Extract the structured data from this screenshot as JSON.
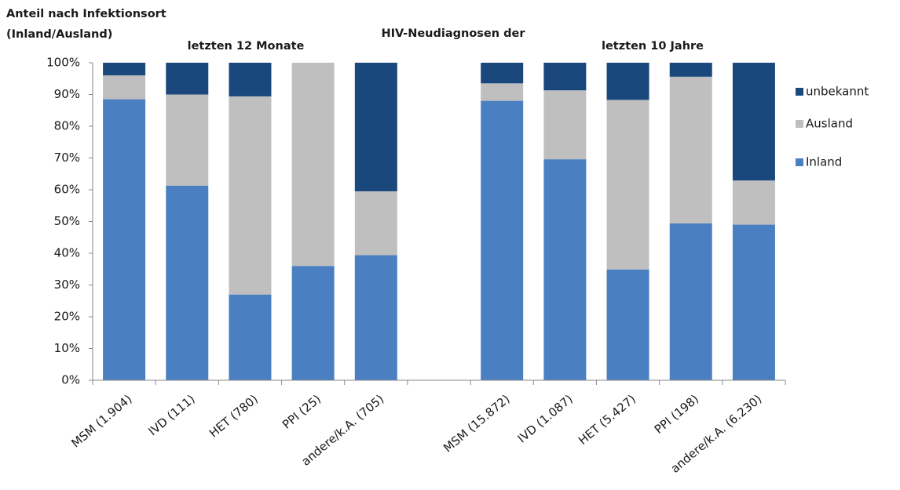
{
  "chart_data": {
    "type": "stacked_bar",
    "ylabel": [
      "Anteil nach Infektionsort",
      "(Inland/Ausland)"
    ],
    "annotations": [
      "letzten 12 Monate",
      "HIV-Neudiagnosen der",
      "letzten 10 Jahre"
    ],
    "categories": [
      "MSM (1.904)",
      "IVD (111)",
      "HET (780)",
      "PPI (25)",
      "andere/k.A. (705)",
      null,
      "MSM (15.872)",
      "IVD (1.087)",
      "HET (5.427)",
      "PPI (198)",
      "andere/k.A. (6.230)"
    ],
    "series": [
      {
        "name": "Inland",
        "color": "#4a80c2",
        "values": [
          88.5,
          61.3,
          27,
          36,
          39.4,
          null,
          88,
          69.6,
          34.9,
          49.4,
          49
        ]
      },
      {
        "name": "Ausland",
        "color": "#bfbfbf",
        "values": [
          7.5,
          28.7,
          62.4,
          64,
          20.1,
          null,
          5.5,
          21.7,
          53.4,
          46.2,
          13.9
        ]
      },
      {
        "name": "unbekannt",
        "color": "#1a477c",
        "values": [
          4,
          10,
          10.6,
          0,
          40.5,
          null,
          6.5,
          8.7,
          11.7,
          4.4,
          37.1
        ]
      }
    ],
    "ylim": [
      0,
      100
    ],
    "yticks": [
      {
        "value": 0,
        "label": "0%"
      },
      {
        "value": 10,
        "label": "10%"
      },
      {
        "value": 20,
        "label": "20%"
      },
      {
        "value": 30,
        "label": "30%"
      },
      {
        "value": 40,
        "label": "40%"
      },
      {
        "value": 50,
        "label": "50%"
      },
      {
        "value": 60,
        "label": "60%"
      },
      {
        "value": 70,
        "label": "70%"
      },
      {
        "value": 80,
        "label": "80%"
      },
      {
        "value": 90,
        "label": "90%"
      },
      {
        "value": 100,
        "label": "100%"
      }
    ],
    "legend": "right"
  }
}
